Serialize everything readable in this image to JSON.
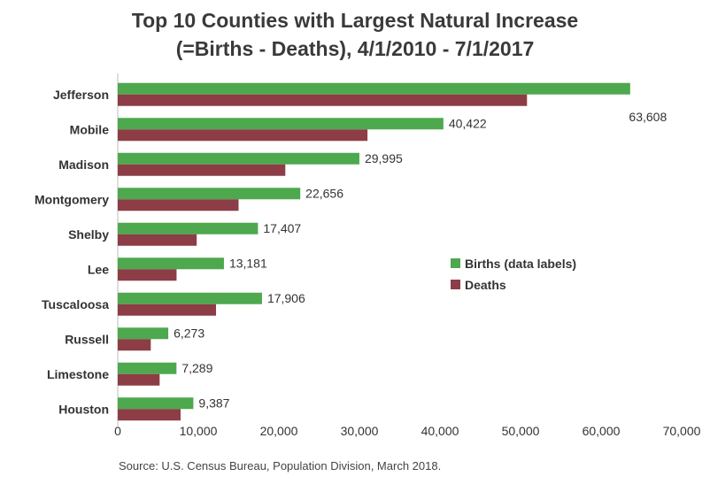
{
  "chart_data": {
    "type": "bar",
    "orientation": "horizontal",
    "title_line1": "Top 10 Counties with Largest Natural Increase",
    "title_line2": "(=Births - Deaths), 4/1/2010 - 7/1/2017",
    "categories": [
      "Jefferson",
      "Mobile",
      "Madison",
      "Montgomery",
      "Shelby",
      "Lee",
      "Tuscaloosa",
      "Russell",
      "Limestone",
      "Houston"
    ],
    "series": [
      {
        "name": "Births (data labels)",
        "color": "#4ea84e",
        "values": [
          63608,
          40422,
          29995,
          22656,
          17407,
          13181,
          17906,
          6273,
          7289,
          9387
        ],
        "labels": [
          "63,608",
          "40,422",
          "29,995",
          "22,656",
          "17,407",
          "13,181",
          "17,906",
          "6,273",
          "7,289",
          "9,387"
        ]
      },
      {
        "name": "Deaths",
        "color": "#8c3d45",
        "values": [
          50800,
          31000,
          20800,
          15000,
          9800,
          7300,
          12200,
          4100,
          5200,
          7800
        ]
      }
    ],
    "xlim": [
      0,
      70000
    ],
    "xticks": [
      0,
      10000,
      20000,
      30000,
      40000,
      50000,
      60000,
      70000
    ],
    "xtick_labels": [
      "0",
      "10,000",
      "20,000",
      "30,000",
      "40,000",
      "50,000",
      "60,000",
      "70,000"
    ],
    "legend_position": "right",
    "grid": false
  },
  "source": "Source: U.S. Census Bureau, Population Division, March 2018."
}
